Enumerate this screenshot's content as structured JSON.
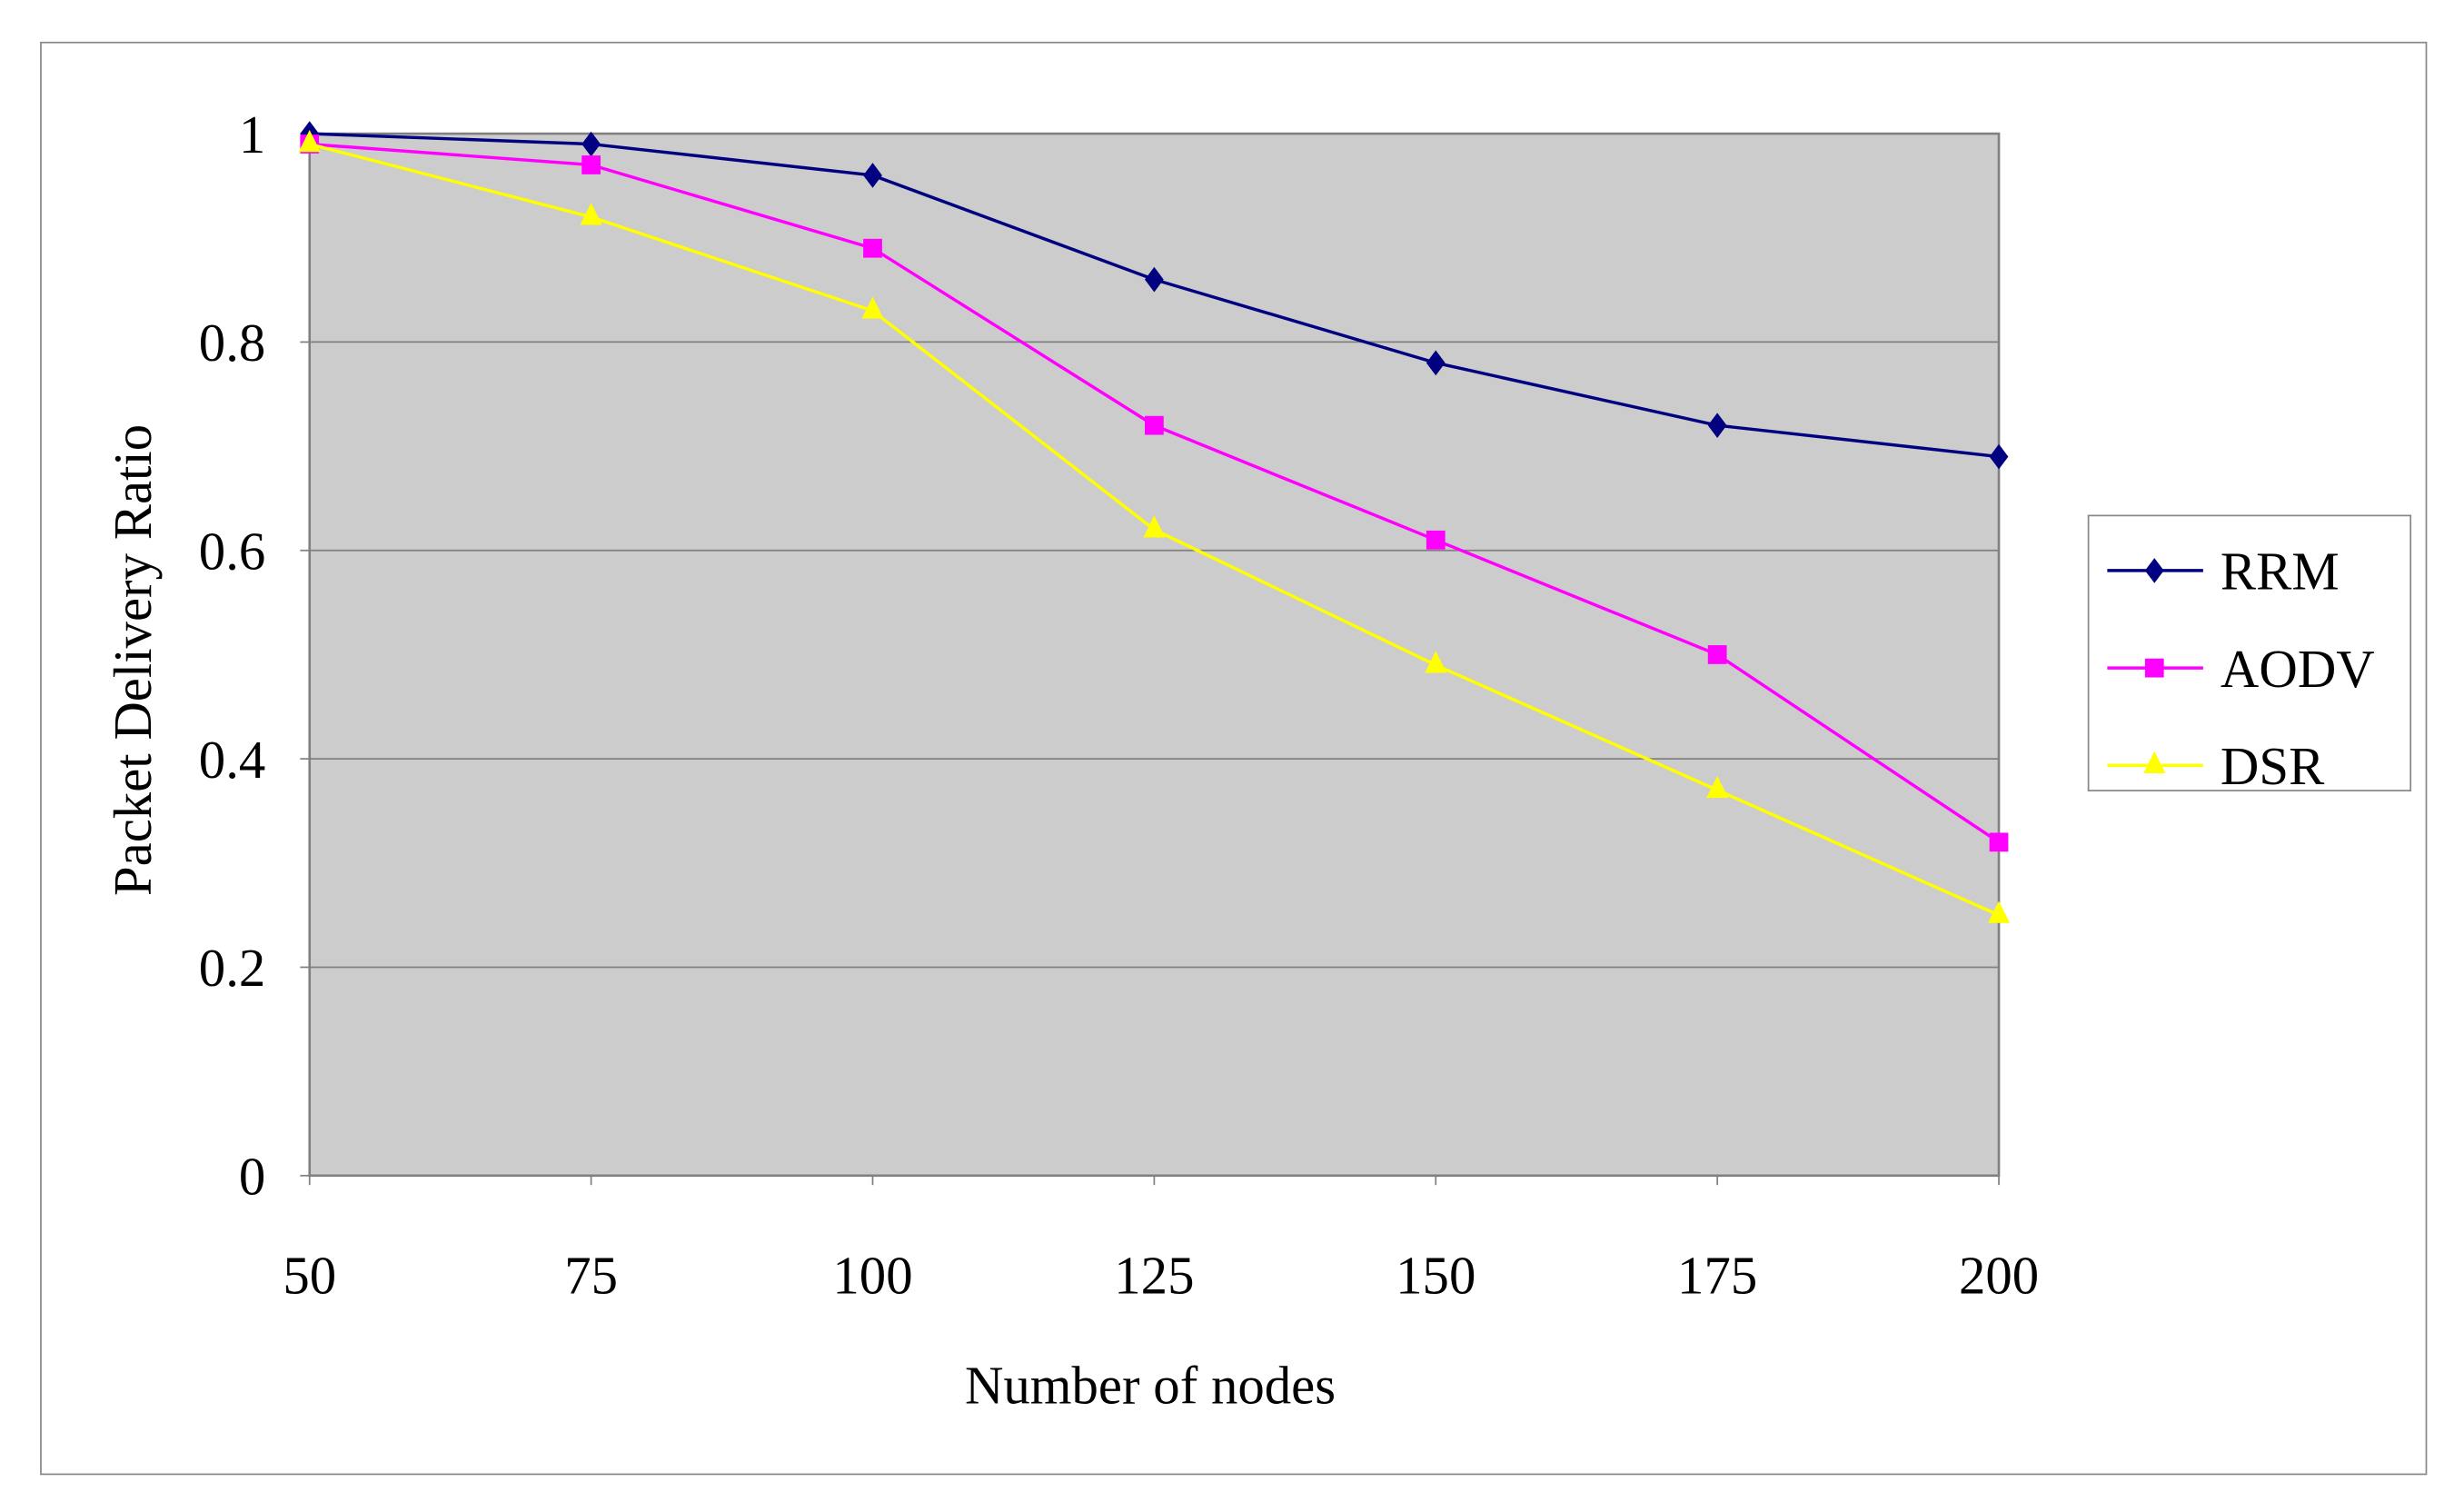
{
  "chart_data": {
    "type": "line",
    "xlabel": "Number of nodes",
    "ylabel": "Packet Delivery Ratio",
    "x": [
      50,
      75,
      100,
      125,
      150,
      175,
      200
    ],
    "x_tick_labels": [
      "50",
      "75",
      "100",
      "125",
      "150",
      "175",
      "200"
    ],
    "y_tick_labels": [
      "0",
      "0.2",
      "0.4",
      "0.6",
      "0.8",
      "1"
    ],
    "ylim": [
      0,
      1
    ],
    "grid": true,
    "legend_position": "right",
    "plot_background": "#cccccc",
    "series": [
      {
        "name": "RRM",
        "color": "#000080",
        "marker": "diamond",
        "values": [
          1.0,
          0.99,
          0.96,
          0.86,
          0.78,
          0.72,
          0.69
        ]
      },
      {
        "name": "AODV",
        "color": "#ff00ff",
        "marker": "square",
        "values": [
          0.99,
          0.97,
          0.89,
          0.72,
          0.61,
          0.5,
          0.32
        ]
      },
      {
        "name": "DSR",
        "color": "#ffff00",
        "marker": "triangle",
        "values": [
          0.99,
          0.92,
          0.83,
          0.62,
          0.49,
          0.37,
          0.25
        ]
      }
    ]
  }
}
